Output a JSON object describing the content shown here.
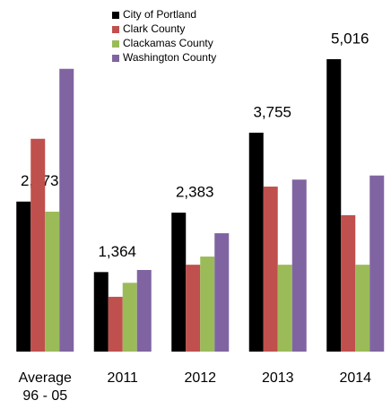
{
  "chart_data": {
    "type": "bar",
    "categories": [
      "Average\n96 - 05",
      "2011",
      "2012",
      "2013",
      "2014"
    ],
    "series": [
      {
        "name": "City of Portland",
        "color": "#000000",
        "values": [
          2573,
          1364,
          2383,
          3755,
          5016
        ],
        "value_labels": [
          "2,573",
          "1,364",
          "2,383",
          "3,755",
          "5,016"
        ]
      },
      {
        "name": "Clark County",
        "color": "#c0504d",
        "values": [
          3650,
          940,
          1490,
          2830,
          2340
        ]
      },
      {
        "name": "Clackamas County",
        "color": "#9bbb59",
        "values": [
          2400,
          1180,
          1630,
          1490,
          1490
        ]
      },
      {
        "name": "Washington County",
        "color": "#8064a2",
        "values": [
          4850,
          1400,
          2030,
          2950,
          3020
        ]
      }
    ],
    "ylim": [
      0,
      6000
    ],
    "legend": "top"
  }
}
